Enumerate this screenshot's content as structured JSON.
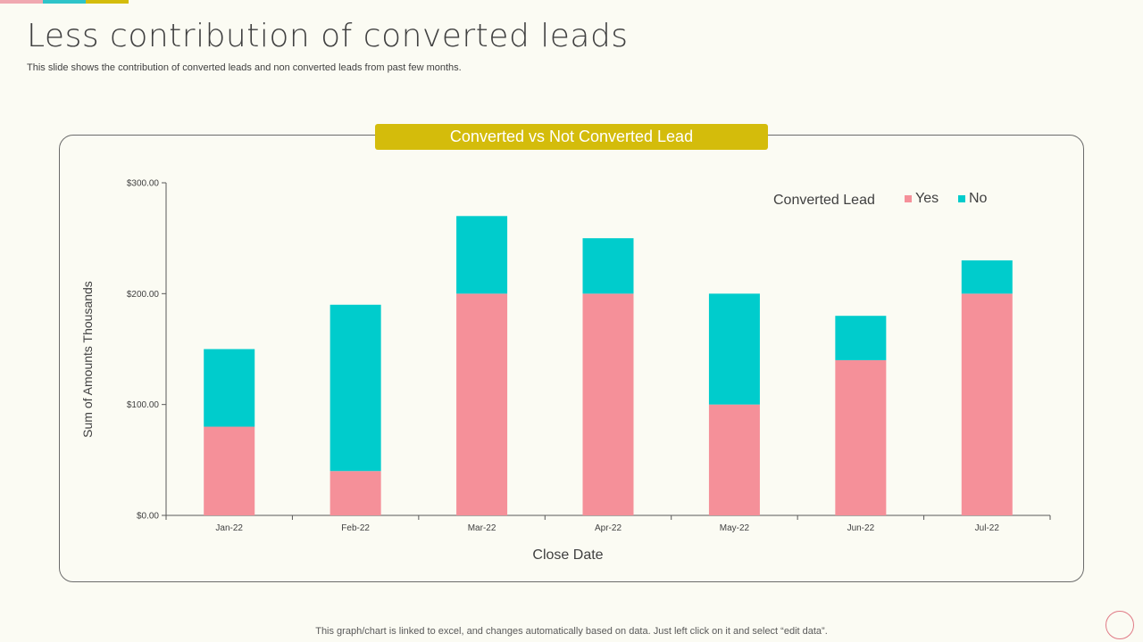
{
  "slide": {
    "title": "Less contribution of converted leads",
    "subtitle": "This slide shows the contribution of converted leads and non converted leads from past few months.",
    "footer": "This graph/chart is linked to excel,  and changes automatically based on data. Just left click on it and select “edit data”.",
    "accent_colors": [
      "#f0a8b0",
      "#2ec4c9",
      "#d4bc0b"
    ],
    "banner_color": "#d4bc0b"
  },
  "chart_data": {
    "type": "bar",
    "stacked": true,
    "title": "Converted vs Not Converted Lead",
    "xlabel": "Close Date",
    "ylabel": "Sum of Amounts Thousands",
    "categories": [
      "Jan-22",
      "Feb-22",
      "Mar-22",
      "Apr-22",
      "May-22",
      "Jun-22",
      "Jul-22"
    ],
    "ylim": [
      0,
      300
    ],
    "yticks": [
      "$0.00",
      "$100.00",
      "$200.00",
      "$300.00"
    ],
    "legend_title": "Converted Lead",
    "legend_position": "top-right",
    "grid": false,
    "series": [
      {
        "name": "Yes",
        "color": "#f59099",
        "values": [
          80,
          40,
          200,
          200,
          100,
          140,
          200
        ]
      },
      {
        "name": "No",
        "color": "#00cccc",
        "values": [
          70,
          150,
          70,
          50,
          100,
          40,
          30
        ]
      }
    ]
  }
}
